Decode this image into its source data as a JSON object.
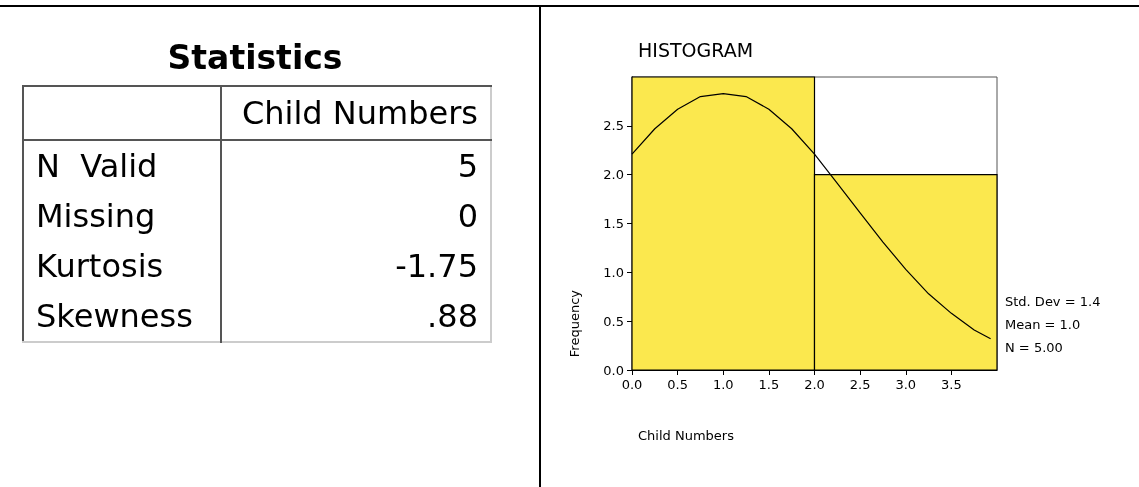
{
  "chart_data": [
    {
      "type": "other",
      "title": "Statistics",
      "categories": [
        "Child Numbers"
      ],
      "y_categories": [
        "N  Valid",
        "Missing",
        "Kurtosis",
        "Skewness"
      ],
      "cell_labels": [
        [
          "5"
        ],
        [
          "0"
        ],
        [
          "-1.75"
        ],
        [
          ".88"
        ]
      ]
    },
    {
      "type": "histogram",
      "title": "HISTOGRAM",
      "xlabel": "Child Numbers",
      "ylabel": "Frequency",
      "bins": [
        0,
        2,
        4
      ],
      "values": [
        3,
        2
      ],
      "color": "#fbe84e",
      "series": [
        {
          "type": "line",
          "color": "#000000",
          "x": [
            0,
            0.25,
            0.5,
            0.75,
            1,
            1.25,
            1.5,
            1.75,
            2,
            2.25,
            2.5,
            2.75,
            3,
            3.25,
            3.5,
            3.75,
            3.93
          ],
          "values": [
            2.21,
            2.47,
            2.67,
            2.8,
            2.83,
            2.8,
            2.67,
            2.47,
            2.21,
            1.91,
            1.61,
            1.31,
            1.03,
            0.78,
            0.58,
            0.41,
            0.32
          ]
        }
      ],
      "xlim": [
        0,
        4
      ],
      "ylim": [
        0,
        3
      ],
      "xticks": [
        {
          "value": 0,
          "label": "0.0"
        },
        {
          "value": 0.5,
          "label": "0.5"
        },
        {
          "value": 1,
          "label": "1.0"
        },
        {
          "value": 1.5,
          "label": "1.5"
        },
        {
          "value": 2,
          "label": "2.0"
        },
        {
          "value": 2.5,
          "label": "2.5"
        },
        {
          "value": 3,
          "label": "3.0"
        },
        {
          "value": 3.5,
          "label": "3.5"
        }
      ],
      "yticks": [
        {
          "value": 0,
          "label": "0.0"
        },
        {
          "value": 0.5,
          "label": "0.5"
        },
        {
          "value": 1,
          "label": "1.0"
        },
        {
          "value": 1.5,
          "label": "1.5"
        },
        {
          "value": 2,
          "label": "2.0"
        },
        {
          "value": 2.5,
          "label": "2.5"
        }
      ],
      "annotations": [
        "Std. Dev = 1.4",
        "Mean = 1.0",
        "N = 5.00"
      ],
      "grid": false
    }
  ]
}
